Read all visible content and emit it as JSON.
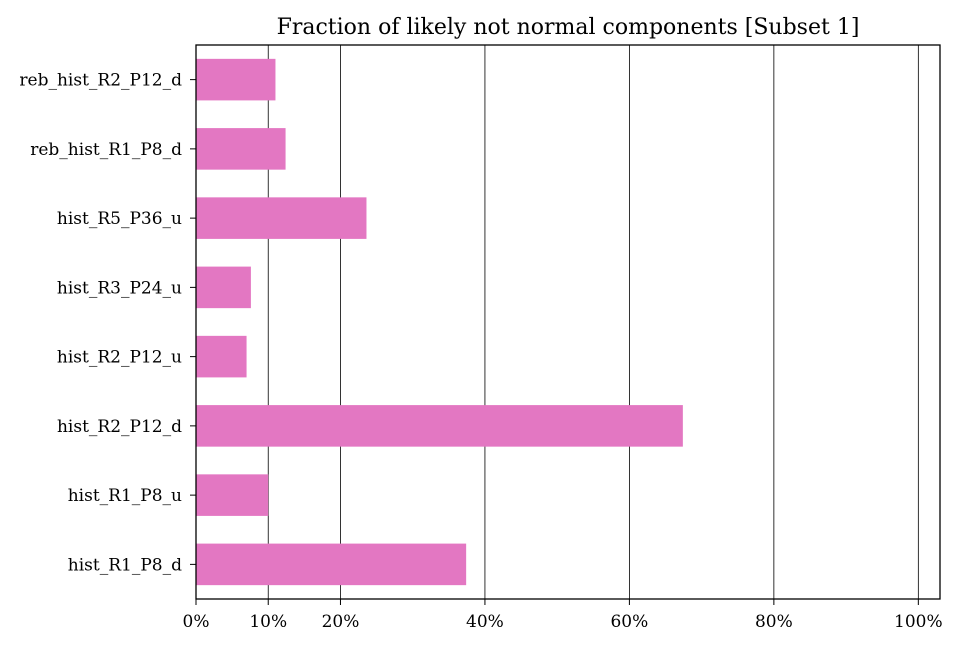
{
  "chart_data": {
    "type": "bar",
    "orientation": "horizontal",
    "title": "Fraction of likely not normal components [Subset 1]",
    "xlabel": "",
    "ylabel": "",
    "categories": [
      "reb_hist_R2_P12_d",
      "reb_hist_R1_P8_d",
      "hist_R5_P36_u",
      "hist_R3_P24_u",
      "hist_R2_P12_u",
      "hist_R2_P12_d",
      "hist_R1_P8_u",
      "hist_R1_P8_d"
    ],
    "values": [
      11,
      12.4,
      23.6,
      7.6,
      7,
      67.4,
      10,
      37.4
    ],
    "xlim": [
      0,
      103
    ],
    "xticks": [
      0,
      10,
      20,
      40,
      60,
      80,
      100
    ],
    "xtick_labels": [
      "0%",
      "10%",
      "20%",
      "40%",
      "60%",
      "80%",
      "100%"
    ],
    "grid": "vertical lines at ticks",
    "bar_color": "#e377c2"
  }
}
